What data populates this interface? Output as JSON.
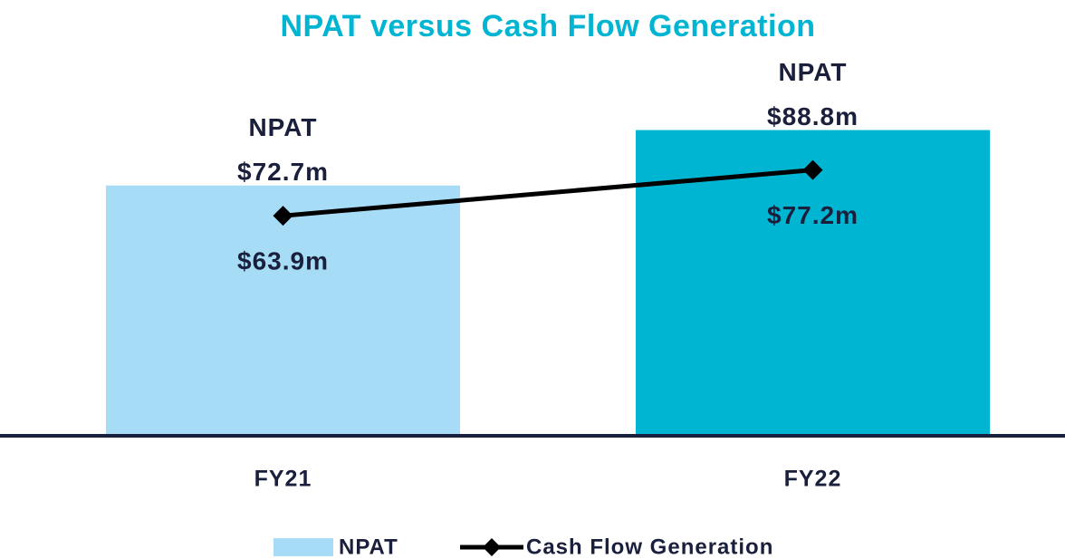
{
  "chart_data": {
    "type": "bar_line",
    "title": "NPAT versus Cash Flow Generation",
    "categories": [
      "FY21",
      "FY22"
    ],
    "series": [
      {
        "name": "NPAT",
        "type": "bar",
        "color": "#a6dcf5",
        "bar_colors": [
          "#a6dcf5",
          "#00b5d1"
        ],
        "values": [
          72.7,
          88.8
        ],
        "value_labels": [
          "$72.7m",
          "$88.8m"
        ]
      },
      {
        "name": "Cash Flow Generation",
        "type": "line",
        "color": "#000000",
        "values": [
          63.9,
          77.2
        ],
        "value_labels": [
          "$63.9m",
          "$77.2m"
        ]
      }
    ]
  }
}
